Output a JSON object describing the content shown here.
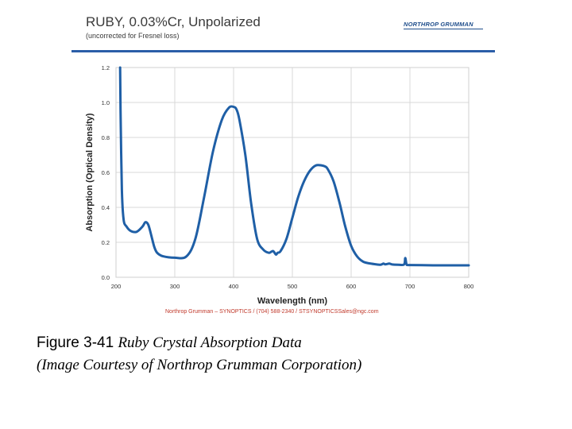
{
  "header": {
    "title": "RUBY, 0.03%Cr, Unpolarized",
    "subtitle": "(uncorrected for Fresnel loss)",
    "logo_text": "NORTHROP GRUMMAN"
  },
  "footer": {
    "contact": "Northrop Grumman – SYNOPTICS  /  (704) 588-2340  /  STSYNOPTICSSales@ngc.com"
  },
  "caption": {
    "figure_label": "Figure 3-41",
    "line1_italic": "Ruby Crystal Absorption Data",
    "line2_italic": "(Image Courtesy of Northrop Grumman Corporation)"
  },
  "colors": {
    "line": "#1f5fa6",
    "rule": "#2b5ea8",
    "grid": "#d9d9d9",
    "contact": "#c0392b"
  },
  "chart_data": {
    "type": "line",
    "title": "RUBY, 0.03%Cr, Unpolarized",
    "subtitle": "(uncorrected for Fresnel loss)",
    "xlabel": "Wavelength (nm)",
    "ylabel": "Absorption (Optical Density)",
    "xlim": [
      200,
      800
    ],
    "ylim": [
      0.0,
      1.2
    ],
    "xticks": [
      200,
      300,
      400,
      500,
      600,
      700,
      800
    ],
    "yticks": [
      0.0,
      0.2,
      0.4,
      0.6,
      0.8,
      1.0,
      1.2
    ],
    "ytick_labels": [
      "0.0",
      "0.2",
      "0.4",
      "0.6",
      "0.8",
      "1.0",
      "1.2"
    ],
    "grid": true,
    "series": [
      {
        "x": [
          207,
          208,
          210,
          213,
          218,
          225,
          235,
          245,
          250,
          255,
          260,
          265,
          270,
          280,
          300,
          320,
          335,
          350,
          365,
          380,
          392,
          400,
          405,
          410,
          420,
          430,
          440,
          450,
          460,
          467,
          472,
          475,
          480,
          490,
          500,
          510,
          520,
          530,
          540,
          550,
          555,
          560,
          570,
          580,
          590,
          600,
          610,
          620,
          630,
          640,
          650,
          655,
          658,
          665,
          670,
          680,
          690,
          692,
          694,
          696,
          700,
          720,
          750,
          780,
          800
        ],
        "y": [
          1.2,
          0.9,
          0.5,
          0.33,
          0.29,
          0.265,
          0.26,
          0.29,
          0.315,
          0.3,
          0.24,
          0.175,
          0.14,
          0.12,
          0.112,
          0.12,
          0.22,
          0.46,
          0.72,
          0.9,
          0.97,
          0.975,
          0.96,
          0.9,
          0.7,
          0.42,
          0.22,
          0.16,
          0.14,
          0.15,
          0.13,
          0.14,
          0.15,
          0.22,
          0.34,
          0.46,
          0.55,
          0.61,
          0.64,
          0.64,
          0.635,
          0.62,
          0.55,
          0.43,
          0.29,
          0.18,
          0.12,
          0.09,
          0.08,
          0.075,
          0.072,
          0.078,
          0.074,
          0.078,
          0.073,
          0.072,
          0.073,
          0.11,
          0.075,
          0.07,
          0.07,
          0.069,
          0.068,
          0.068,
          0.068
        ]
      }
    ]
  }
}
